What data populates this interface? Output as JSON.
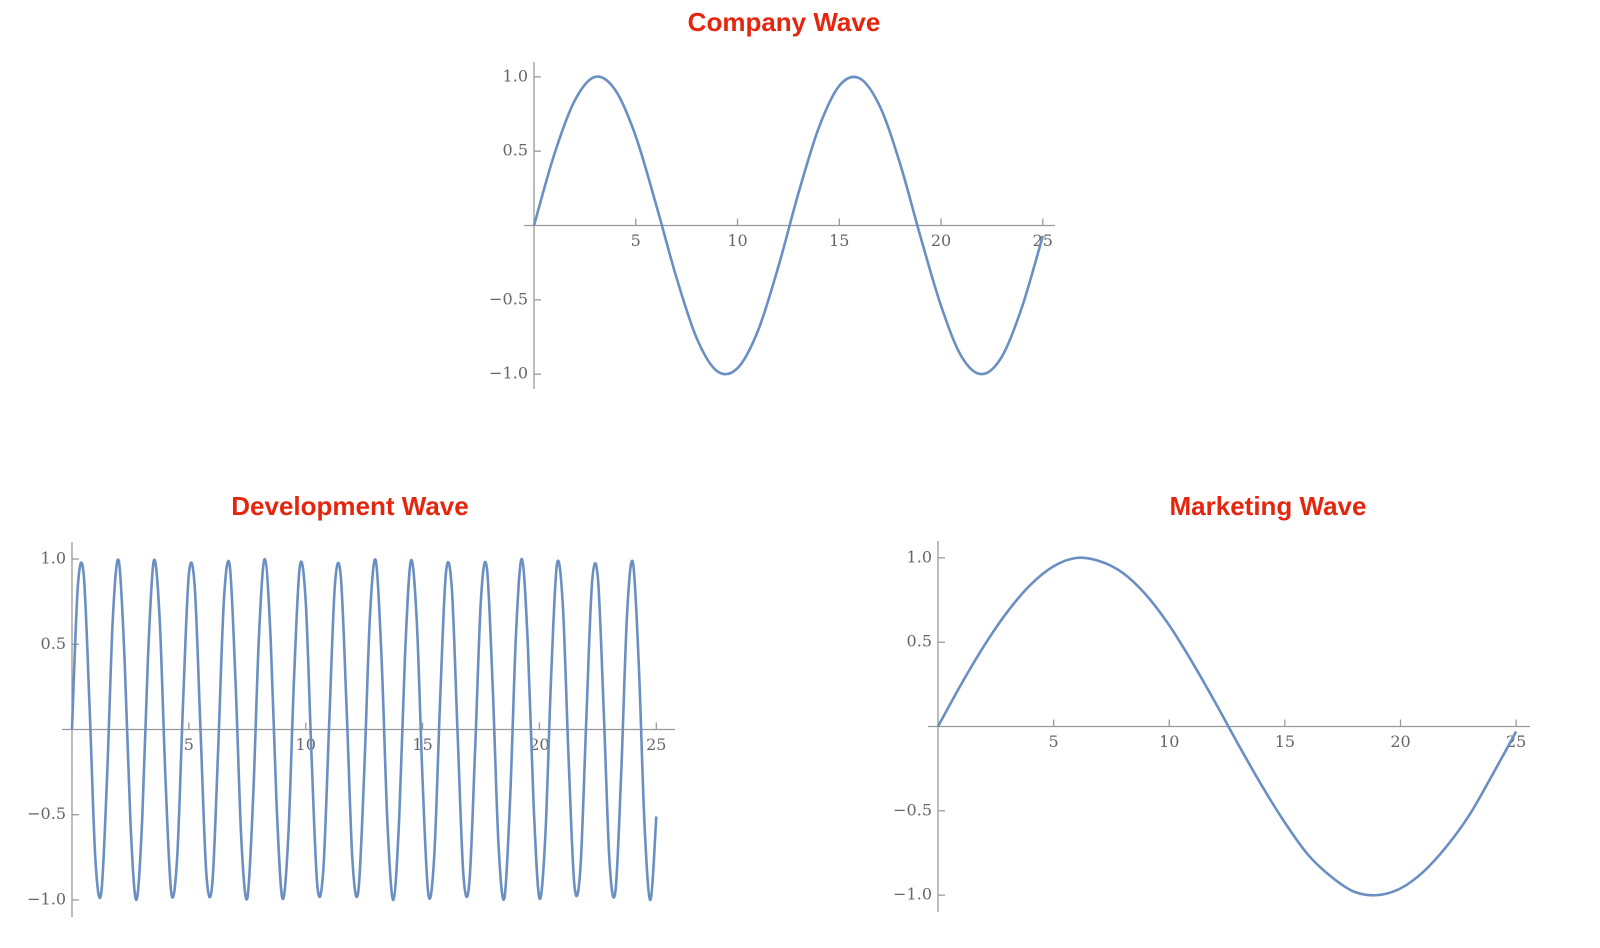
{
  "chart_data": [
    {
      "type": "line",
      "title": "Company Wave",
      "color": "#6a8fc2",
      "x": [
        0,
        1,
        2,
        3,
        4,
        5,
        6,
        7,
        8,
        9,
        10,
        11,
        12,
        13,
        14,
        15,
        16,
        17,
        18,
        19,
        20,
        21,
        22,
        23,
        24,
        25
      ],
      "values": [
        0,
        0.48,
        0.84,
        1.0,
        0.91,
        0.6,
        0.14,
        -0.35,
        -0.76,
        -0.98,
        -0.96,
        -0.71,
        -0.28,
        0.22,
        0.66,
        0.94,
        0.99,
        0.8,
        0.41,
        -0.08,
        -0.54,
        -0.88,
        -1.0,
        -0.88,
        -0.54,
        -0.07
      ],
      "xlim": [
        0,
        25.6
      ],
      "ylim": [
        -1.1,
        1.1
      ],
      "xticks": [
        5,
        10,
        15,
        20,
        25
      ],
      "yticks": [
        {
          "value": -1,
          "label": "−1.0"
        },
        {
          "value": -0.5,
          "label": "−0.5"
        },
        0.5,
        {
          "value": 1,
          "label": "1.0"
        }
      ]
    },
    {
      "type": "line",
      "title": "Development Wave",
      "color": "#6a8fc2",
      "x": [
        0,
        0.25,
        0.5,
        0.75,
        1,
        1.25,
        1.5,
        1.75,
        2,
        2.25,
        2.5,
        2.75,
        3,
        3.25,
        3.5,
        3.75,
        4,
        4.25,
        4.5,
        4.75,
        5,
        5.25,
        5.5,
        5.75,
        6,
        6.25,
        6.5,
        6.75,
        7,
        7.25,
        7.5,
        7.75,
        8,
        8.25,
        8.5,
        8.75,
        9,
        9.25,
        9.5,
        9.75,
        10,
        10.25,
        10.5,
        10.75,
        11,
        11.25,
        11.5,
        11.75,
        12,
        12.25,
        12.5,
        12.75,
        13,
        13.25,
        13.5,
        13.75,
        14,
        14.25,
        14.5,
        14.75,
        15,
        15.25,
        15.5,
        15.75,
        16,
        16.25,
        16.5,
        16.75,
        17,
        17.25,
        17.5,
        17.75,
        18,
        18.25,
        18.5,
        18.75,
        19,
        19.25,
        19.5,
        19.75,
        20,
        20.25,
        20.5,
        20.75,
        21,
        21.25,
        21.5,
        21.75,
        22,
        22.25,
        22.5,
        22.75,
        23,
        23.25,
        23.5,
        23.75,
        24,
        24.25,
        24.5,
        24.75,
        25
      ],
      "values": [
        0,
        0.84,
        0.91,
        0.14,
        -0.76,
        -0.96,
        -0.28,
        0.66,
        0.99,
        0.41,
        -0.54,
        -1.0,
        -0.54,
        0.42,
        0.99,
        0.65,
        -0.29,
        -0.96,
        -0.75,
        0.15,
        0.91,
        0.84,
        -0.01,
        -0.85,
        -0.91,
        -0.13,
        0.76,
        0.96,
        0.27,
        -0.66,
        -0.99,
        -0.4,
        0.55,
        1.0,
        0.53,
        -0.43,
        -0.99,
        -0.64,
        0.3,
        0.96,
        0.75,
        -0.16,
        -0.92,
        -0.83,
        0.02,
        0.85,
        0.9,
        0.12,
        -0.77,
        -0.95,
        -0.26,
        0.67,
        0.99,
        0.4,
        -0.56,
        -1.0,
        -0.52,
        0.44,
        0.99,
        0.64,
        -0.3,
        -0.97,
        -0.74,
        0.17,
        0.92,
        0.83,
        -0.03,
        -0.86,
        -0.9,
        -0.11,
        0.77,
        0.95,
        0.25,
        -0.68,
        -0.99,
        -0.39,
        0.57,
        1.0,
        0.51,
        -0.44,
        -0.99,
        -0.63,
        0.31,
        0.97,
        0.73,
        -0.18,
        -0.92,
        -0.82,
        0.04,
        0.86,
        0.89,
        0.11,
        -0.78,
        -0.95,
        -0.25,
        0.68,
        0.98,
        0.38,
        -0.57,
        -1.0,
        -0.51
      ],
      "xlim": [
        0,
        25.8
      ],
      "ylim": [
        -1.1,
        1.1
      ],
      "xticks": [
        5,
        10,
        15,
        20,
        25
      ],
      "yticks": [
        {
          "value": -1,
          "label": "−1.0"
        },
        {
          "value": -0.5,
          "label": "−0.5"
        },
        0.5,
        {
          "value": 1,
          "label": "1.0"
        }
      ]
    },
    {
      "type": "line",
      "title": "Marketing Wave",
      "color": "#6a8fc2",
      "x": [
        0,
        1,
        2,
        3,
        4,
        5,
        6,
        7,
        8,
        9,
        10,
        11,
        12,
        13,
        14,
        15,
        16,
        17,
        18,
        19,
        20,
        21,
        22,
        23,
        24,
        25
      ],
      "values": [
        0,
        0.25,
        0.48,
        0.68,
        0.84,
        0.95,
        1.0,
        0.98,
        0.91,
        0.78,
        0.6,
        0.38,
        0.14,
        -0.11,
        -0.35,
        -0.57,
        -0.76,
        -0.89,
        -0.98,
        -1.0,
        -0.96,
        -0.86,
        -0.71,
        -0.52,
        -0.28,
        -0.03
      ],
      "xlim": [
        0,
        25.6
      ],
      "ylim": [
        -1.1,
        1.1
      ],
      "xticks": [
        5,
        10,
        15,
        20,
        25
      ],
      "yticks": [
        {
          "value": -1,
          "label": "−1.0"
        },
        {
          "value": -0.5,
          "label": "−0.5"
        },
        0.5,
        {
          "value": 1,
          "label": "1.0"
        }
      ]
    }
  ]
}
